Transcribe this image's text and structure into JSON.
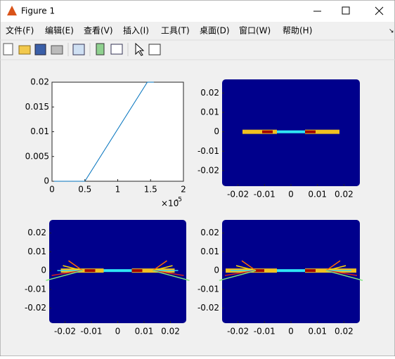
{
  "window": {
    "title": "Figure 1",
    "menu": [
      "文件(F)",
      "编辑(E)",
      "查看(V)",
      "插入(I)",
      "工具(T)",
      "桌面(D)",
      "窗口(W)",
      "帮助(H)"
    ]
  },
  "chart_data": [
    {
      "type": "line",
      "x": [
        0,
        0.5,
        1.45,
        1.55
      ],
      "values": [
        0,
        0,
        0.02,
        0.02
      ],
      "color": "#0072bd",
      "xlim": [
        0,
        2
      ],
      "ylim": [
        0,
        0.02
      ],
      "xticks": [
        0,
        0.5,
        1,
        1.5,
        2
      ],
      "yticks": [
        0,
        0.005,
        0.01,
        0.015,
        0.02
      ],
      "x_multiplier": {
        "base": "×10",
        "exponent": "-5"
      }
    },
    {
      "type": "image",
      "color": "#00008c",
      "xlim": [
        -0.026,
        0.026
      ],
      "ylim": [
        -0.028,
        0.027
      ],
      "xticks": [
        -0.02,
        -0.01,
        0,
        0.01,
        0.02
      ],
      "yticks": [
        -0.02,
        -0.01,
        0,
        0.01,
        0.02
      ]
    },
    {
      "type": "image",
      "color": "#00008c",
      "xlim": [
        -0.026,
        0.026
      ],
      "ylim": [
        -0.028,
        0.027
      ],
      "xticks": [
        -0.02,
        -0.01,
        0,
        0.01,
        0.02
      ],
      "yticks": [
        -0.02,
        -0.01,
        0,
        0.01,
        0.02
      ]
    },
    {
      "type": "image",
      "color": "#00008c",
      "xlim": [
        -0.026,
        0.026
      ],
      "ylim": [
        -0.028,
        0.027
      ],
      "xticks": [
        -0.02,
        -0.01,
        0,
        0.01,
        0.02
      ],
      "yticks": [
        -0.02,
        -0.01,
        0,
        0.01,
        0.02
      ]
    }
  ]
}
